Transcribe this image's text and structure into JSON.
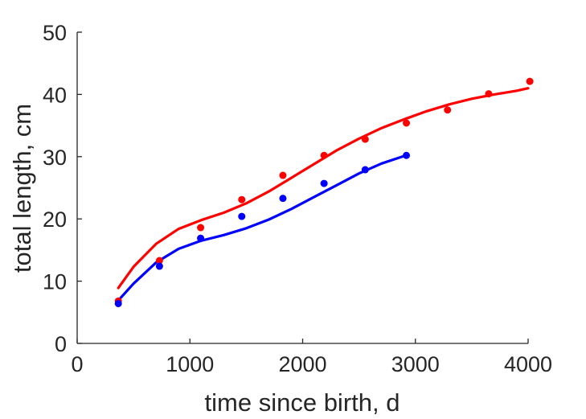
{
  "chart_data": {
    "type": "scatter",
    "title": "",
    "xlabel": "time since birth, d",
    "ylabel": "total length, cm",
    "xlim": [
      0,
      4000
    ],
    "ylim": [
      0,
      50
    ],
    "xticks": [
      0,
      1000,
      2000,
      3000,
      4000
    ],
    "yticks": [
      0,
      10,
      20,
      30,
      40,
      50
    ],
    "grid": false,
    "legend": "none",
    "series": [
      {
        "kind": "points",
        "color": "#ff0000",
        "x": [
          365,
          730,
          1095,
          1460,
          1825,
          2190,
          2555,
          2920,
          3285,
          3650,
          4015
        ],
        "y": [
          6.8,
          13.3,
          18.6,
          23.1,
          27.0,
          30.2,
          32.8,
          35.4,
          37.5,
          40.1,
          42.1
        ]
      },
      {
        "kind": "points",
        "color": "#0000ff",
        "x": [
          365,
          730,
          1095,
          1460,
          1825,
          2190,
          2555,
          2920
        ],
        "y": [
          6.4,
          12.4,
          16.9,
          20.4,
          23.3,
          25.7,
          27.9,
          30.2
        ]
      },
      {
        "kind": "line",
        "color": "#ff0000",
        "x": [
          365,
          500,
          700,
          900,
          1100,
          1300,
          1500,
          1700,
          1900,
          2100,
          2300,
          2500,
          2700,
          2900,
          3100,
          3300,
          3500,
          3700,
          3900,
          4000
        ],
        "y": [
          8.9,
          12.3,
          16.0,
          18.4,
          19.8,
          21.0,
          22.5,
          24.4,
          26.6,
          28.8,
          31.0,
          32.9,
          34.6,
          36.0,
          37.3,
          38.4,
          39.3,
          40.0,
          40.6,
          41.0
        ]
      },
      {
        "kind": "line",
        "color": "#0000ff",
        "x": [
          365,
          500,
          700,
          900,
          1100,
          1300,
          1500,
          1700,
          1900,
          2100,
          2300,
          2500,
          2700,
          2900
        ],
        "y": [
          6.9,
          9.6,
          13.0,
          15.2,
          16.5,
          17.4,
          18.5,
          19.9,
          21.6,
          23.5,
          25.4,
          27.3,
          28.9,
          30.1
        ]
      }
    ]
  }
}
